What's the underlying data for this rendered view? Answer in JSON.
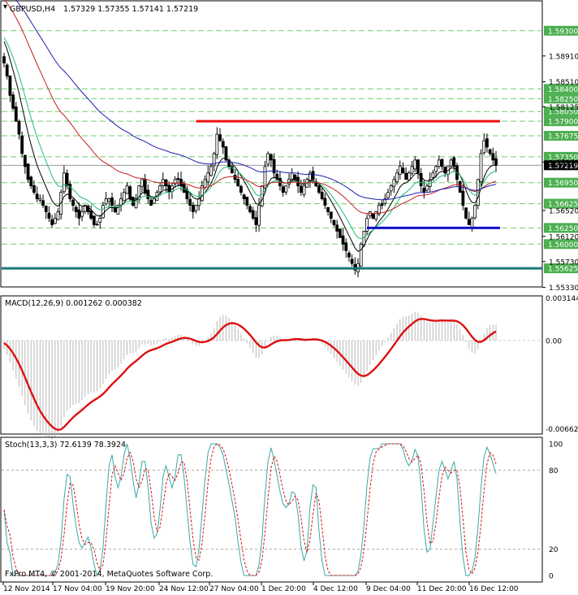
{
  "chart_data": [
    {
      "type": "candlestick",
      "title": "GBPUSD,H4",
      "ohlc_header": "1.57329 1.57355 1.57141 1.57219",
      "ylim": [
        1.5535,
        1.5975
      ],
      "y_ticks": [
        "1.58910",
        "1.58510",
        "1.58125",
        "1.57270",
        "1.56520",
        "1.56120",
        "1.55730",
        "1.55330"
      ],
      "level_tags": [
        {
          "label": "1.59300",
          "value": 1.593,
          "color": "#4caf50"
        },
        {
          "label": "1.58400",
          "value": 1.584,
          "color": "#4caf50"
        },
        {
          "label": "1.58250",
          "value": 1.5825,
          "color": "#4caf50"
        },
        {
          "label": "1.58050",
          "value": 1.5805,
          "color": "#4caf50"
        },
        {
          "label": "1.57900",
          "value": 1.579,
          "color": "#4caf50"
        },
        {
          "label": "1.57675",
          "value": 1.57675,
          "color": "#4caf50"
        },
        {
          "label": "1.57350",
          "value": 1.5735,
          "color": "#4caf50"
        },
        {
          "label": "1.57219",
          "value": 1.57219,
          "color": "#000000"
        },
        {
          "label": "1.56950",
          "value": 1.5695,
          "color": "#4caf50"
        },
        {
          "label": "1.56625",
          "value": 1.56625,
          "color": "#4caf50"
        },
        {
          "label": "1.56250",
          "value": 1.5625,
          "color": "#4caf50"
        },
        {
          "label": "1.56000",
          "value": 1.56,
          "color": "#4caf50"
        },
        {
          "label": "1.55625",
          "value": 1.55625,
          "color": "#4caf50"
        }
      ],
      "resistance": {
        "value": 1.579,
        "color": "#ee1111"
      },
      "support": {
        "value": 1.5625,
        "color": "#1111cc"
      },
      "floor": {
        "value": 1.55625,
        "color": "#1a7a78"
      },
      "close": [
        1.588,
        1.586,
        1.583,
        1.581,
        1.579,
        1.577,
        1.574,
        1.572,
        1.57,
        1.569,
        1.568,
        1.567,
        1.567,
        1.566,
        1.565,
        1.564,
        1.563,
        1.564,
        1.565,
        1.568,
        1.571,
        1.569,
        1.567,
        1.566,
        1.565,
        1.564,
        1.565,
        1.566,
        1.565,
        1.564,
        1.563,
        1.563,
        1.564,
        1.566,
        1.567,
        1.567,
        1.566,
        1.565,
        1.566,
        1.567,
        1.568,
        1.569,
        1.567,
        1.566,
        1.567,
        1.569,
        1.57,
        1.568,
        1.567,
        1.566,
        1.567,
        1.568,
        1.569,
        1.57,
        1.569,
        1.568,
        1.569,
        1.57,
        1.57,
        1.569,
        1.568,
        1.567,
        1.566,
        1.565,
        1.566,
        1.567,
        1.569,
        1.57,
        1.571,
        1.572,
        1.574,
        1.577,
        1.576,
        1.575,
        1.573,
        1.572,
        1.571,
        1.57,
        1.569,
        1.568,
        1.567,
        1.566,
        1.565,
        1.564,
        1.563,
        1.566,
        1.569,
        1.572,
        1.574,
        1.573,
        1.571,
        1.57,
        1.569,
        1.568,
        1.569,
        1.57,
        1.571,
        1.57,
        1.569,
        1.568,
        1.569,
        1.57,
        1.571,
        1.57,
        1.569,
        1.568,
        1.567,
        1.566,
        1.565,
        1.564,
        1.563,
        1.562,
        1.561,
        1.56,
        1.559,
        1.558,
        1.557,
        1.556,
        1.557,
        1.56,
        1.562,
        1.564,
        1.565,
        1.564,
        1.565,
        1.566,
        1.566,
        1.567,
        1.568,
        1.569,
        1.57,
        1.571,
        1.572,
        1.571,
        1.57,
        1.571,
        1.572,
        1.573,
        1.571,
        1.569,
        1.568,
        1.569,
        1.57,
        1.571,
        1.572,
        1.573,
        1.572,
        1.571,
        1.572,
        1.573,
        1.572,
        1.57,
        1.568,
        1.566,
        1.564,
        1.563,
        1.564,
        1.566,
        1.57,
        1.574,
        1.576,
        1.575,
        1.574,
        1.573,
        1.5722
      ],
      "ema_fast": {
        "color": "#000000"
      },
      "ema_mid": {
        "color": "#20c070"
      },
      "ema_slow": {
        "color": "#c81e1e"
      },
      "ema_long": {
        "color": "#1e1eb4"
      },
      "x_labels": [
        "12 Nov 2014",
        "17 Nov 04:00",
        "19 Nov 20:00",
        "24 Nov 12:00",
        "27 Nov 04:00",
        "1 Dec 20:00",
        "4 Dec 12:00",
        "9 Dec 04:00",
        "11 Dec 20:00",
        "16 Dec 12:00"
      ]
    },
    {
      "type": "bar",
      "title": "MACD(12,26,9) 0.001262 0.000382",
      "ylim": [
        -0.006627,
        0.003144
      ],
      "y_ticks": [
        "0.003144",
        "0.00",
        "-0.006627"
      ],
      "signal_color": "#dd1111",
      "hist_color": "#b8b8b8"
    },
    {
      "type": "line",
      "title": "Stoch(13,3,3) 72.6139 78.3924",
      "ylim": [
        0,
        100
      ],
      "y_ticks": [
        "100",
        "80",
        "20",
        "0"
      ],
      "main_color": "#3aa8a8",
      "signal_color": "#dd1111"
    }
  ],
  "footer": "FxPro MT4, © 2001-2014, MetaQuotes Software Corp."
}
